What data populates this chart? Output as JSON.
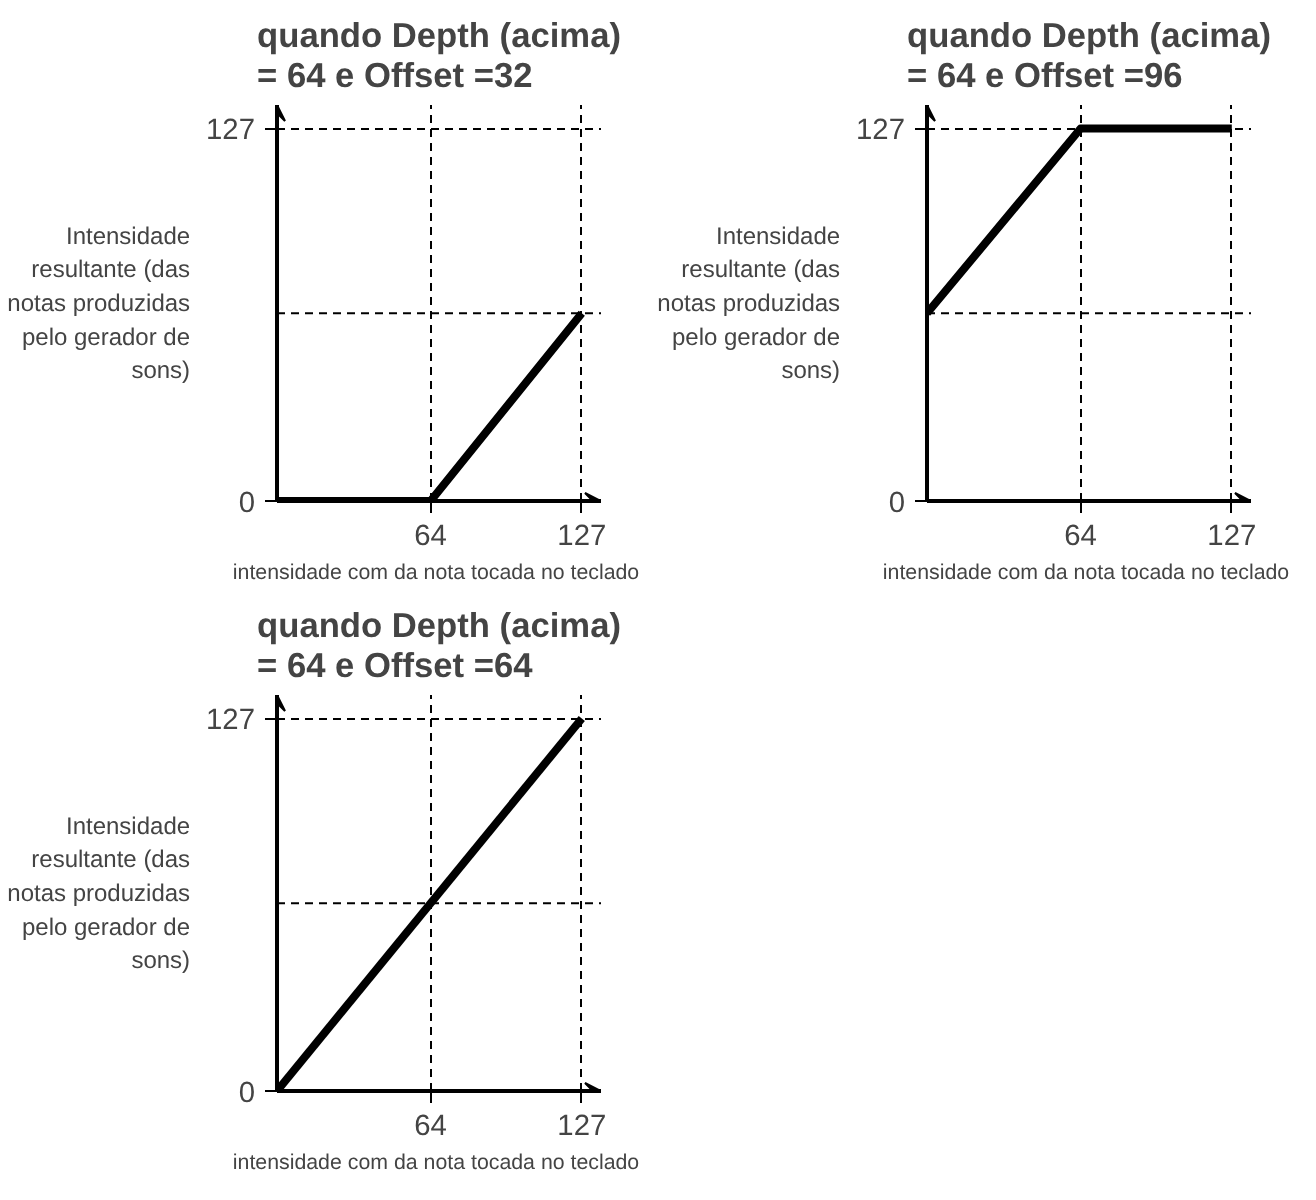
{
  "chart_data": [
    {
      "type": "line",
      "title": "quando Depth (acima) = 64 e Offset =32",
      "xlabel": "intensidade com da nota tocada  no teclado",
      "ylabel": "Intensidade resultante (das notas produzidas pelo gerador de sons)",
      "x": [
        0,
        64,
        127
      ],
      "series": [
        {
          "color": "#000000",
          "values": [
            0,
            0,
            64
          ]
        }
      ],
      "xlim": [
        0,
        135
      ],
      "ylim": [
        0,
        135
      ],
      "xticks": [
        64,
        127
      ],
      "yticks": [
        0,
        127
      ],
      "ref_lines": [
        {
          "axis": "y",
          "value": 64,
          "color": "#000000",
          "line_style": "dashed"
        }
      ],
      "grid": true,
      "marker": "none",
      "line_style": "solid"
    },
    {
      "type": "line",
      "title": "quando Depth (acima) = 64 e Offset =96",
      "xlabel": "intensidade com da nota tocada  no teclado",
      "ylabel": "Intensidade resultante (das notas produzidas pelo gerador de sons)",
      "x": [
        0,
        64,
        127
      ],
      "series": [
        {
          "color": "#000000",
          "values": [
            64,
            127,
            127
          ]
        }
      ],
      "xlim": [
        0,
        135
      ],
      "ylim": [
        0,
        135
      ],
      "xticks": [
        64,
        127
      ],
      "yticks": [
        0,
        127
      ],
      "ref_lines": [
        {
          "axis": "y",
          "value": 64,
          "color": "#000000",
          "line_style": "dashed"
        }
      ],
      "grid": true,
      "marker": "none",
      "line_style": "solid"
    },
    {
      "type": "line",
      "title": "quando Depth (acima) = 64 e Offset =64",
      "xlabel": "intensidade com da nota tocada  no teclado",
      "ylabel": "Intensidade resultante (das notas produzidas pelo gerador de sons)",
      "x": [
        0,
        127
      ],
      "series": [
        {
          "color": "#000000",
          "values": [
            0,
            127
          ]
        }
      ],
      "xlim": [
        0,
        135
      ],
      "ylim": [
        0,
        135
      ],
      "xticks": [
        64,
        127
      ],
      "yticks": [
        0,
        127
      ],
      "ref_lines": [
        {
          "axis": "y",
          "value": 64,
          "color": "#000000",
          "line_style": "dashed"
        }
      ],
      "grid": true,
      "marker": "none",
      "line_style": "solid"
    }
  ]
}
